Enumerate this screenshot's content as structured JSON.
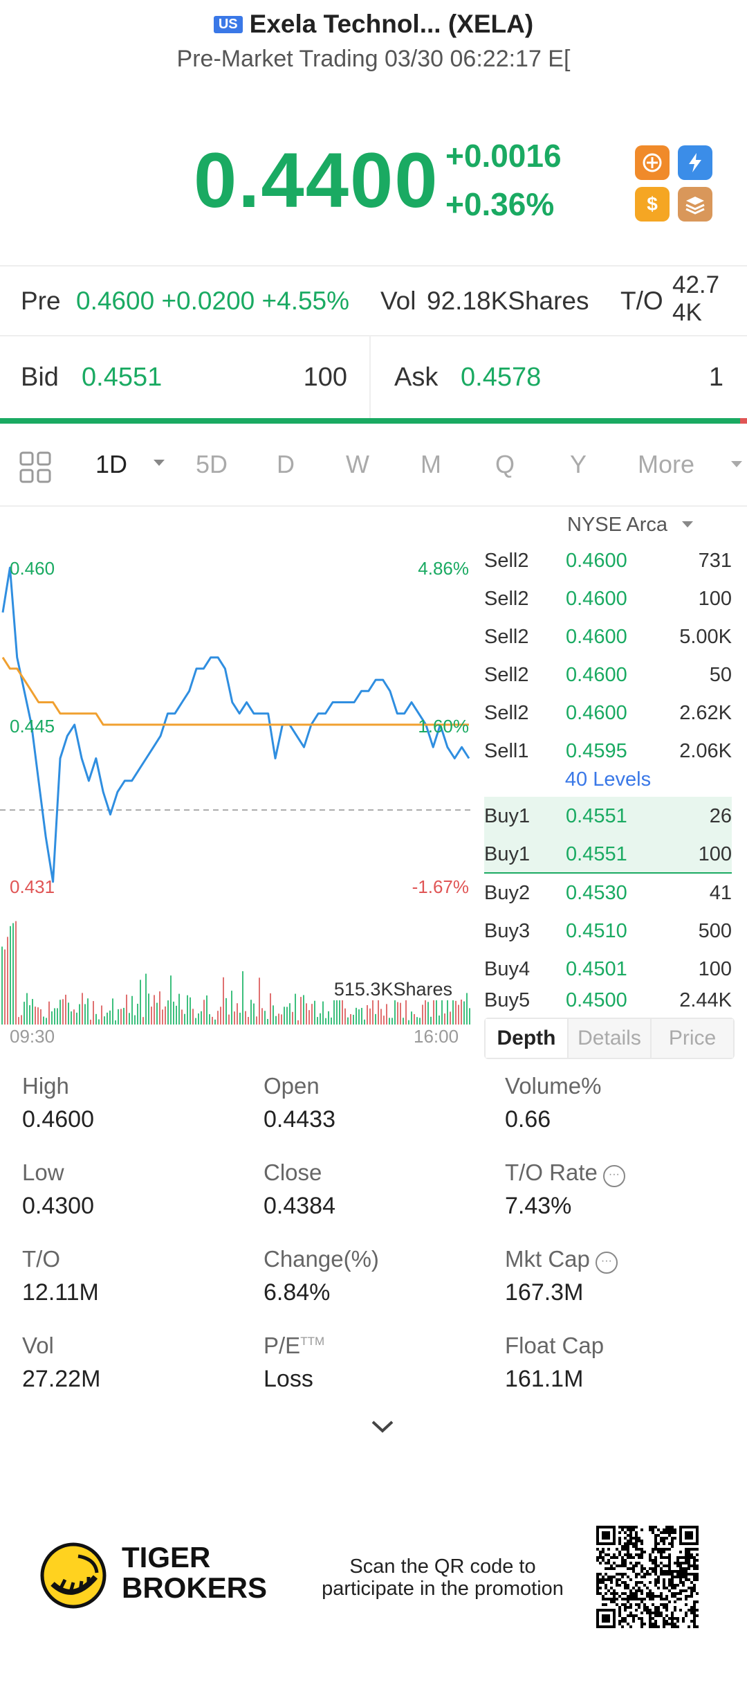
{
  "header": {
    "market_badge": "US",
    "title": "Exela Technol... (XELA)",
    "subtitle": "Pre-Market Trading 03/30 06:22:17 E["
  },
  "quote": {
    "price": "0.4400",
    "change": "+0.0016",
    "change_pct": "+0.36%"
  },
  "app_icons": [
    {
      "name": "swap-app-icon",
      "color": "#f08a2a",
      "glyph": "↻"
    },
    {
      "name": "flash-app-icon",
      "color": "#3b8de8",
      "glyph": "⚡"
    },
    {
      "name": "dollar-app-icon",
      "color": "#f5a623",
      "glyph": "$"
    },
    {
      "name": "stack-app-icon",
      "color": "#d9975a",
      "glyph": "≡"
    }
  ],
  "premarket": {
    "label": "Pre",
    "value": "0.4600 +0.0200 +4.55%",
    "vol_label": "Vol",
    "vol_value": "92.18KShares",
    "to_label": "T/O",
    "to_value_line1": "42.7",
    "to_value_line2": "4K"
  },
  "bid": {
    "label": "Bid",
    "price": "0.4551",
    "qty": "100"
  },
  "ask": {
    "label": "Ask",
    "price": "0.4578",
    "qty": "1"
  },
  "periods": {
    "items": [
      "1D",
      "5D",
      "D",
      "W",
      "M",
      "Q",
      "Y"
    ],
    "active": "1D",
    "more": "More"
  },
  "exchange": "NYSE Arca",
  "chart_data": {
    "type": "line",
    "title": "",
    "x_start": "09:30",
    "x_end": "16:00",
    "ylim": [
      0.431,
      0.46
    ],
    "y_labels": {
      "high": "0.460",
      "mid": "0.445",
      "low": "0.431"
    },
    "pct_labels": {
      "high": "4.86%",
      "mid": "1.60%",
      "low": "-1.67%"
    },
    "reference_close": 0.4384,
    "volume_label": "515.3KShares",
    "series": [
      {
        "color": "#2f8ee0",
        "values": [
          0.456,
          0.46,
          0.452,
          0.449,
          0.446,
          0.441,
          0.436,
          0.432,
          0.443,
          0.445,
          0.446,
          0.443,
          0.441,
          0.443,
          0.44,
          0.438,
          0.44,
          0.441,
          0.441,
          0.442,
          0.443,
          0.444,
          0.445,
          0.447,
          0.447,
          0.448,
          0.449,
          0.451,
          0.451,
          0.452,
          0.452,
          0.451,
          0.448,
          0.447,
          0.448,
          0.447,
          0.447,
          0.447,
          0.443,
          0.446,
          0.446,
          0.445,
          0.444,
          0.446,
          0.447,
          0.447,
          0.448,
          0.448,
          0.448,
          0.448,
          0.449,
          0.449,
          0.45,
          0.45,
          0.449,
          0.447,
          0.447,
          0.448,
          0.447,
          0.446,
          0.444,
          0.446,
          0.444,
          0.443,
          0.444,
          0.443
        ]
      },
      {
        "color": "#f0a030",
        "values": [
          0.452,
          0.451,
          0.451,
          0.45,
          0.449,
          0.448,
          0.448,
          0.448,
          0.447,
          0.447,
          0.447,
          0.447,
          0.447,
          0.447,
          0.446,
          0.446,
          0.446,
          0.446,
          0.446,
          0.446,
          0.446,
          0.446,
          0.446,
          0.446,
          0.446,
          0.446,
          0.446,
          0.446,
          0.446,
          0.446,
          0.446,
          0.446,
          0.446,
          0.446,
          0.446,
          0.446,
          0.446,
          0.446,
          0.446,
          0.446,
          0.446,
          0.446,
          0.446,
          0.446,
          0.446,
          0.446,
          0.446,
          0.446,
          0.446,
          0.446,
          0.446,
          0.446,
          0.446,
          0.446,
          0.446,
          0.446,
          0.446,
          0.446,
          0.446,
          0.446,
          0.446,
          0.446,
          0.446,
          0.446,
          0.446,
          0.446
        ]
      }
    ]
  },
  "orderbook": {
    "rows": [
      {
        "label": "Sell2",
        "price": "0.4600",
        "qty": "731",
        "side": "sell"
      },
      {
        "label": "Sell2",
        "price": "0.4600",
        "qty": "100",
        "side": "sell"
      },
      {
        "label": "Sell2",
        "price": "0.4600",
        "qty": "5.00K",
        "side": "sell"
      },
      {
        "label": "Sell2",
        "price": "0.4600",
        "qty": "50",
        "side": "sell"
      },
      {
        "label": "Sell2",
        "price": "0.4600",
        "qty": "2.62K",
        "side": "sell"
      },
      {
        "label": "Sell1",
        "price": "0.4595",
        "qty": "2.06K",
        "side": "sell"
      },
      {
        "label": "Buy1",
        "price": "0.4551",
        "qty": "26",
        "side": "buy-hl"
      },
      {
        "label": "Buy1",
        "price": "0.4551",
        "qty": "100",
        "side": "buy-hl"
      },
      {
        "label": "Buy2",
        "price": "0.4530",
        "qty": "41",
        "side": "buy"
      },
      {
        "label": "Buy3",
        "price": "0.4510",
        "qty": "500",
        "side": "buy"
      },
      {
        "label": "Buy4",
        "price": "0.4501",
        "qty": "100",
        "side": "buy"
      },
      {
        "label": "Buy5",
        "price": "0.4500",
        "qty": "2.44K",
        "side": "buy"
      }
    ],
    "levels": "40 Levels",
    "tabs": [
      "Depth",
      "Details",
      "Price"
    ],
    "active_tab": "Depth"
  },
  "stats": [
    {
      "label": "High",
      "value": "0.4600"
    },
    {
      "label": "Open",
      "value": "0.4433"
    },
    {
      "label": "Volume%",
      "value": "0.66"
    },
    {
      "label": "Low",
      "value": "0.4300"
    },
    {
      "label": "Close",
      "value": "0.4384"
    },
    {
      "label": "T/O Rate",
      "value": "7.43%"
    },
    {
      "label": "T/O",
      "value": "12.11M"
    },
    {
      "label": "Change(%)",
      "value": "6.84%"
    },
    {
      "label": "Mkt Cap",
      "value": "167.3M"
    },
    {
      "label": "Vol",
      "value": "27.22M"
    },
    {
      "label": "P/E",
      "label_sup": "TTM",
      "value": "Loss"
    },
    {
      "label": "Float Cap",
      "value": "161.1M"
    }
  ],
  "footer": {
    "brand_line1": "TIGER",
    "brand_line2": "BROKERS",
    "promo_line1": "Scan the QR code to",
    "promo_line2": "participate in the promotion"
  }
}
